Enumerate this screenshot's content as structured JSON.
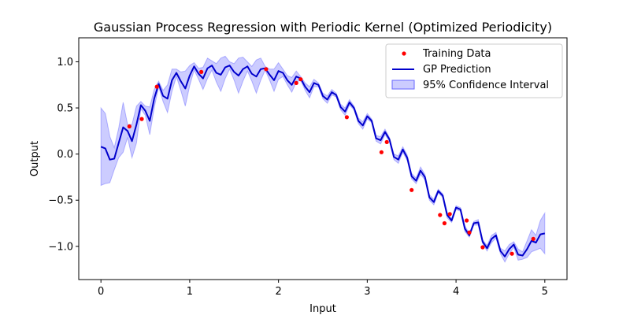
{
  "chart_data": {
    "type": "line",
    "title": "Gaussian Process Regression with Periodic Kernel (Optimized Periodicity)",
    "xlabel": "Input",
    "ylabel": "Output",
    "xlim": [
      -0.25,
      5.25
    ],
    "ylim": [
      -1.36,
      1.26
    ],
    "x_ticks": [
      0,
      1,
      2,
      3,
      4,
      5
    ],
    "x_tick_labels": [
      "0",
      "1",
      "2",
      "3",
      "4",
      "5"
    ],
    "y_ticks": [
      -1.0,
      -0.5,
      0.0,
      0.5,
      1.0
    ],
    "y_tick_labels": [
      "−1.0",
      "−0.5",
      "0.0",
      "0.5",
      "1.0"
    ],
    "grid": false,
    "legend": {
      "position": "top-right",
      "entries": [
        "Training Data",
        "GP Prediction",
        "95% Confidence Interval"
      ]
    },
    "colors": {
      "training": "#ff0000",
      "prediction": "#0000cc",
      "ci_fill": "#0000ff",
      "ci_fill_opacity": 0.2
    },
    "training_data": [
      {
        "x": 0.32,
        "y": 0.3
      },
      {
        "x": 0.46,
        "y": 0.38
      },
      {
        "x": 0.63,
        "y": 0.73
      },
      {
        "x": 1.13,
        "y": 0.89
      },
      {
        "x": 1.86,
        "y": 0.92
      },
      {
        "x": 2.2,
        "y": 0.77
      },
      {
        "x": 2.25,
        "y": 0.81
      },
      {
        "x": 2.77,
        "y": 0.4
      },
      {
        "x": 3.16,
        "y": 0.02
      },
      {
        "x": 3.22,
        "y": 0.13
      },
      {
        "x": 3.5,
        "y": -0.39
      },
      {
        "x": 3.82,
        "y": -0.66
      },
      {
        "x": 3.87,
        "y": -0.75
      },
      {
        "x": 3.93,
        "y": -0.65
      },
      {
        "x": 4.12,
        "y": -0.72
      },
      {
        "x": 4.15,
        "y": -0.85
      },
      {
        "x": 4.3,
        "y": -1.01
      },
      {
        "x": 4.63,
        "y": -1.08
      },
      {
        "x": 4.87,
        "y": -0.92
      }
    ],
    "prediction": {
      "x": [
        0,
        0.05,
        0.1,
        0.15,
        0.2,
        0.25,
        0.3,
        0.35,
        0.4,
        0.45,
        0.5,
        0.55,
        0.6,
        0.65,
        0.7,
        0.75,
        0.8,
        0.85,
        0.9,
        0.95,
        1.0,
        1.05,
        1.1,
        1.15,
        1.2,
        1.25,
        1.3,
        1.35,
        1.4,
        1.45,
        1.5,
        1.55,
        1.6,
        1.65,
        1.7,
        1.75,
        1.8,
        1.85,
        1.9,
        1.95,
        2.0,
        2.05,
        2.1,
        2.15,
        2.2,
        2.25,
        2.3,
        2.35,
        2.4,
        2.45,
        2.5,
        2.55,
        2.6,
        2.65,
        2.7,
        2.75,
        2.8,
        2.85,
        2.9,
        2.95,
        3.0,
        3.05,
        3.1,
        3.15,
        3.2,
        3.25,
        3.3,
        3.35,
        3.4,
        3.45,
        3.5,
        3.55,
        3.6,
        3.65,
        3.7,
        3.75,
        3.8,
        3.85,
        3.9,
        3.95,
        4.0,
        4.05,
        4.1,
        4.15,
        4.2,
        4.25,
        4.3,
        4.35,
        4.4,
        4.45,
        4.5,
        4.55,
        4.6,
        4.65,
        4.7,
        4.75,
        4.8,
        4.85,
        4.9,
        4.95,
        5.0
      ],
      "mean": [
        0.08,
        0.06,
        -0.06,
        -0.05,
        0.12,
        0.29,
        0.25,
        0.14,
        0.32,
        0.53,
        0.47,
        0.36,
        0.6,
        0.76,
        0.63,
        0.6,
        0.8,
        0.88,
        0.79,
        0.71,
        0.85,
        0.95,
        0.87,
        0.82,
        0.93,
        0.96,
        0.88,
        0.86,
        0.94,
        0.96,
        0.89,
        0.85,
        0.92,
        0.95,
        0.87,
        0.84,
        0.92,
        0.93,
        0.86,
        0.8,
        0.9,
        0.88,
        0.8,
        0.75,
        0.84,
        0.82,
        0.73,
        0.67,
        0.77,
        0.75,
        0.63,
        0.59,
        0.67,
        0.64,
        0.51,
        0.46,
        0.56,
        0.5,
        0.36,
        0.31,
        0.41,
        0.36,
        0.17,
        0.15,
        0.24,
        0.16,
        -0.03,
        -0.06,
        0.05,
        -0.04,
        -0.24,
        -0.29,
        -0.18,
        -0.25,
        -0.47,
        -0.52,
        -0.4,
        -0.45,
        -0.66,
        -0.72,
        -0.58,
        -0.6,
        -0.81,
        -0.88,
        -0.75,
        -0.74,
        -0.95,
        -1.02,
        -0.92,
        -0.88,
        -1.05,
        -1.11,
        -1.03,
        -0.98,
        -1.09,
        -1.1,
        -1.03,
        -0.94,
        -0.96,
        -0.87,
        -0.86
      ],
      "ci_half_width": [
        0.42,
        0.38,
        0.25,
        0.12,
        0.16,
        0.27,
        0.07,
        0.18,
        0.2,
        0.04,
        0.05,
        0.15,
        0.1,
        0.03,
        0.06,
        0.15,
        0.12,
        0.04,
        0.1,
        0.19,
        0.11,
        0.04,
        0.06,
        0.12,
        0.11,
        0.05,
        0.1,
        0.18,
        0.12,
        0.04,
        0.09,
        0.19,
        0.13,
        0.05,
        0.08,
        0.18,
        0.12,
        0.02,
        0.06,
        0.12,
        0.09,
        0.04,
        0.05,
        0.08,
        0.06,
        0.02,
        0.04,
        0.06,
        0.04,
        0.02,
        0.03,
        0.04,
        0.03,
        0.02,
        0.03,
        0.04,
        0.03,
        0.02,
        0.03,
        0.04,
        0.03,
        0.02,
        0.03,
        0.04,
        0.03,
        0.02,
        0.03,
        0.04,
        0.03,
        0.03,
        0.03,
        0.03,
        0.04,
        0.03,
        0.03,
        0.03,
        0.02,
        0.02,
        0.03,
        0.02,
        0.02,
        0.02,
        0.03,
        0.02,
        0.02,
        0.03,
        0.02,
        0.03,
        0.04,
        0.03,
        0.03,
        0.06,
        0.05,
        0.03,
        0.06,
        0.04,
        0.09,
        0.12,
        0.08,
        0.15,
        0.22
      ]
    }
  }
}
